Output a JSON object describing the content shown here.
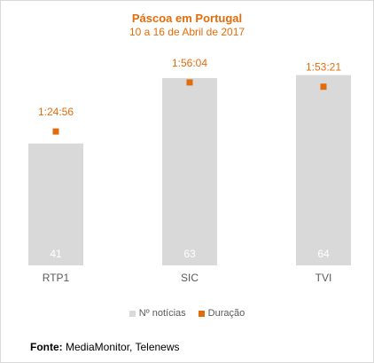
{
  "colors": {
    "bar": "#d9d9d9",
    "marker": "#e36c0a",
    "bar_label": "#ffffff",
    "axis_label": "#595959"
  },
  "source": {
    "label": "Fonte:",
    "text": "MediaMonitor, Telenews"
  },
  "chart_data": {
    "type": "bar",
    "title": "Páscoa em Portugal",
    "subtitle": "10 a 16 de Abril de 2017",
    "categories": [
      "RTP1",
      "SIC",
      "TVI"
    ],
    "series": [
      {
        "name": "Nº notícias",
        "type": "bar",
        "values": [
          41,
          63,
          64
        ]
      },
      {
        "name": "Duração",
        "type": "marker",
        "values": [
          "1:24:56",
          "1:56:04",
          "1:53:21"
        ],
        "seconds": [
          5096,
          6964,
          6801
        ]
      }
    ],
    "legend": "bottom-center",
    "grid": false
  }
}
